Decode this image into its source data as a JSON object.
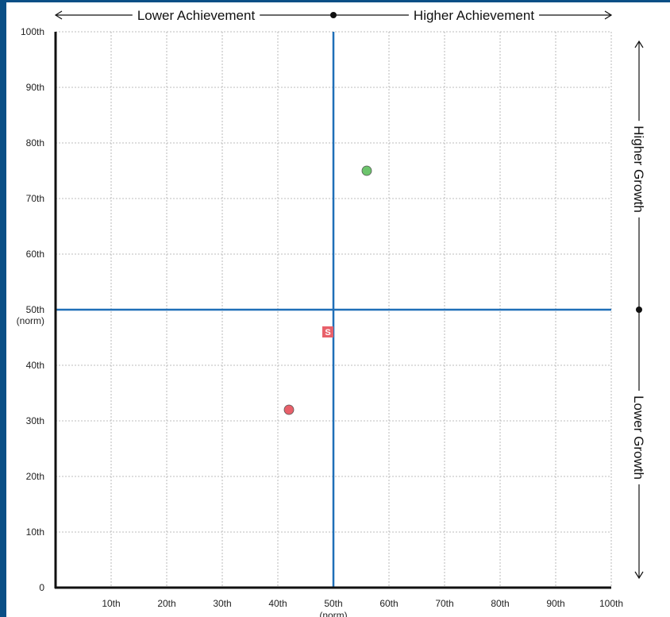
{
  "chart_data": {
    "type": "scatter",
    "title": "",
    "xlim": [
      0,
      100
    ],
    "ylim": [
      0,
      100
    ],
    "x_ticks": [
      {
        "value": 10,
        "label": "10th"
      },
      {
        "value": 20,
        "label": "20th"
      },
      {
        "value": 30,
        "label": "30th"
      },
      {
        "value": 40,
        "label": "40th"
      },
      {
        "value": 50,
        "label": "50th",
        "sublabel": "(norm)"
      },
      {
        "value": 60,
        "label": "60th"
      },
      {
        "value": 70,
        "label": "70th"
      },
      {
        "value": 80,
        "label": "80th"
      },
      {
        "value": 90,
        "label": "90th"
      },
      {
        "value": 100,
        "label": "100th"
      }
    ],
    "y_ticks": [
      {
        "value": 0,
        "label": "0"
      },
      {
        "value": 10,
        "label": "10th"
      },
      {
        "value": 20,
        "label": "20th"
      },
      {
        "value": 30,
        "label": "30th"
      },
      {
        "value": 40,
        "label": "40th"
      },
      {
        "value": 50,
        "label": "50th",
        "sublabel": "(norm)"
      },
      {
        "value": 60,
        "label": "60th"
      },
      {
        "value": 70,
        "label": "70th"
      },
      {
        "value": 80,
        "label": "80th"
      },
      {
        "value": 90,
        "label": "90th"
      },
      {
        "value": 100,
        "label": "100th"
      }
    ],
    "grid": true,
    "reference_lines": {
      "x": 50,
      "y": 50,
      "color": "#1f6fb8"
    },
    "points": [
      {
        "x": 56,
        "y": 75,
        "marker": "circle",
        "color": "#6cc46c"
      },
      {
        "x": 42,
        "y": 32,
        "marker": "circle",
        "color": "#e8606a"
      },
      {
        "x": 49,
        "y": 46,
        "marker": "square",
        "color": "#e8606a",
        "label": "S"
      }
    ],
    "x_banner": {
      "left": "Lower Achievement",
      "right": "Higher Achievement"
    },
    "y_banner": {
      "top": "Higher Growth",
      "bottom": "Lower Growth"
    }
  }
}
